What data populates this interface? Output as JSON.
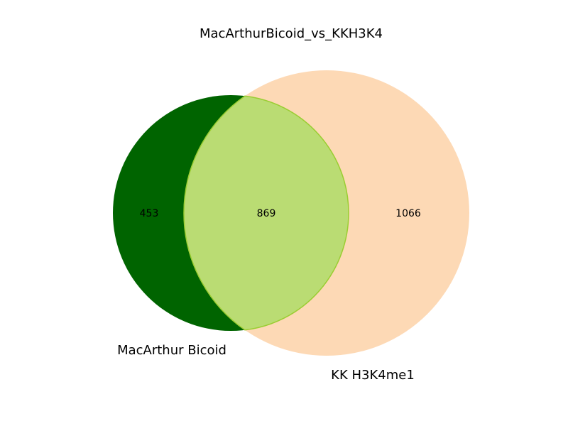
{
  "chart_data": {
    "type": "venn2",
    "title": "MacArthurBicoid_vs_KKH3K4",
    "sets": [
      {
        "name": "MacArthur Bicoid",
        "color": "#006400"
      },
      {
        "name": "KK H3K4me1",
        "color": "#FDD9B5"
      }
    ],
    "intersection_color": "#BADC73",
    "intersection_edge_color": "#9ACD32",
    "subsets": {
      "only_a": 453,
      "both": 869,
      "only_b": 1066
    },
    "counts_text": {
      "only_a": "453",
      "both": "869",
      "only_b": "1066"
    }
  }
}
